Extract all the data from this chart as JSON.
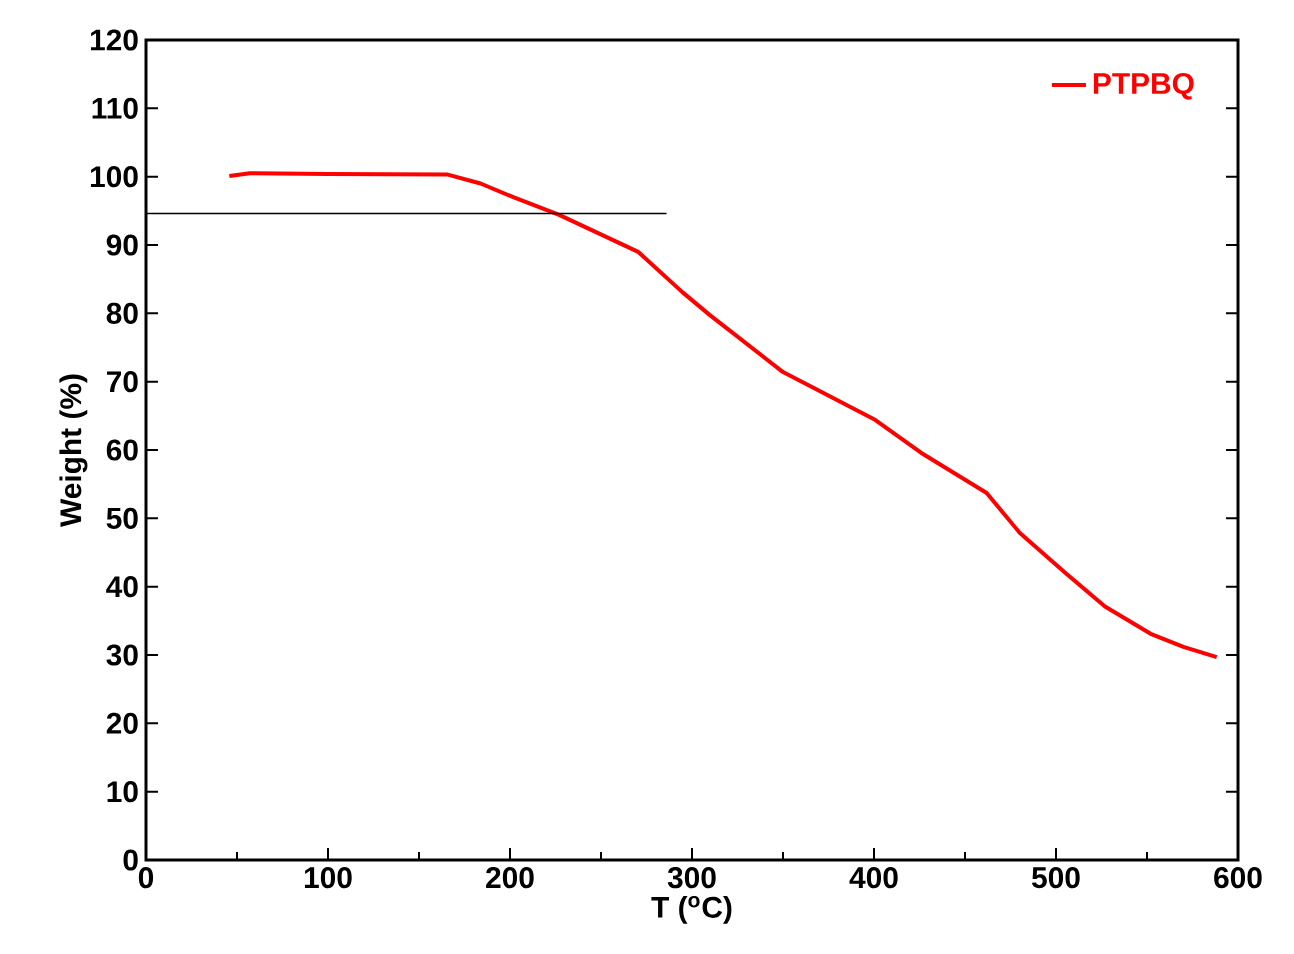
{
  "chart_data": {
    "type": "line",
    "xlabel": "T ($^{o}$C)",
    "ylabel": "Weight (%)",
    "xlim": [
      0,
      600
    ],
    "ylim": [
      0,
      120
    ],
    "xticks": [
      0,
      100,
      200,
      300,
      400,
      500,
      600
    ],
    "yticks": [
      0,
      10,
      20,
      30,
      40,
      50,
      60,
      70,
      80,
      90,
      100,
      110,
      120
    ],
    "legend": "top right",
    "grid": false,
    "series": [
      {
        "name": "PTPBQ",
        "color": "#ff0000",
        "x": [
          45.8,
          57,
          100,
          165.8,
          183.8,
          201.8,
          227,
          270.4,
          294.7,
          310,
          350,
          400,
          425.8,
          461.9,
          480,
          505.2,
          526.9,
          552,
          570,
          588.3
        ],
        "values": [
          100.1,
          100.5,
          100.4,
          100.3,
          99,
          97,
          94.4,
          89,
          83.1,
          79.7,
          71.4,
          64.5,
          59.6,
          53.7,
          47.9,
          42,
          37.1,
          33.1,
          31.2,
          29.7
        ]
      },
      {
        "color": "#000000",
        "x": [
          0,
          286
        ],
        "values": [
          94.6,
          94.6
        ]
      }
    ]
  }
}
